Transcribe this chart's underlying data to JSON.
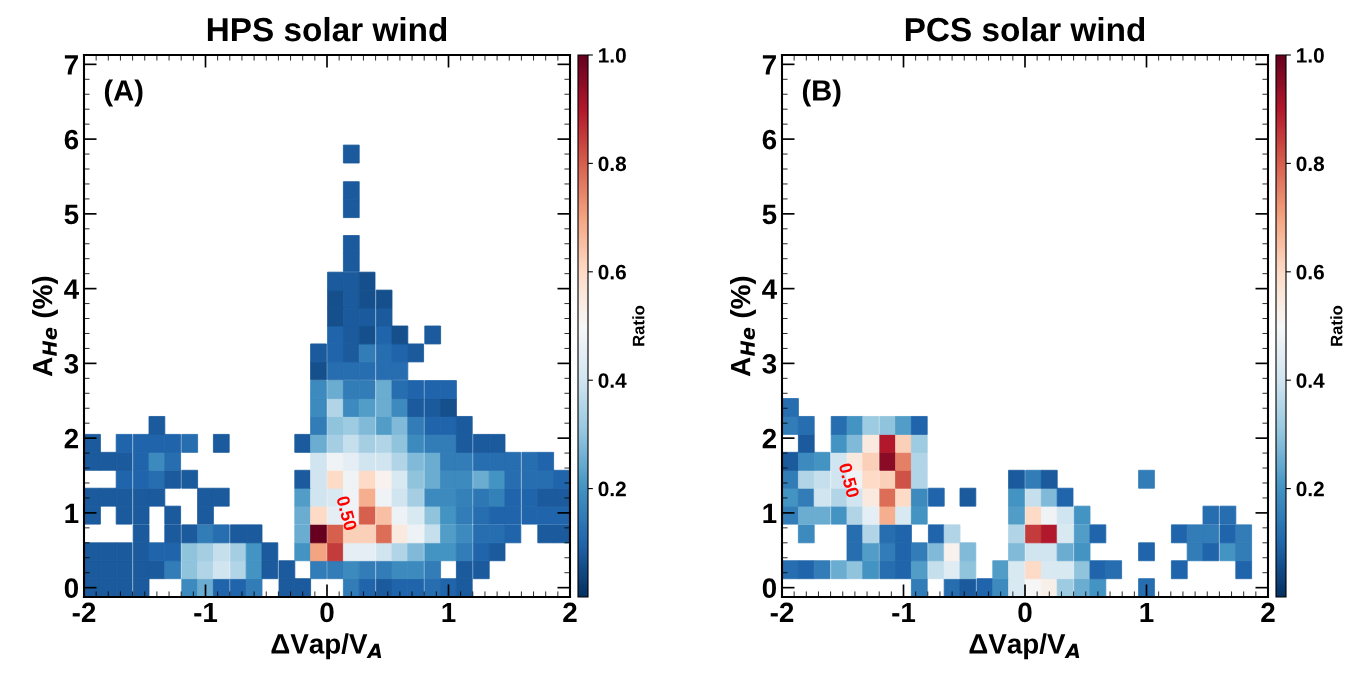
{
  "chart_data": [
    {
      "type": "scatter",
      "title": "HPS solar wind",
      "xlabel": "ΔVap/V$_{A}$",
      "ylabel": "A$_{He}$ (%)",
      "clabel": "Ratio",
      "annotations": [
        "(A)",
        {
          "text": "0.50",
          "x": 0.15,
          "y": 0.99
        }
      ],
      "xlim": [
        -2,
        2
      ],
      "xticks": [
        -2,
        -1,
        0,
        1,
        2
      ],
      "ylim": [
        -0.125,
        7.125
      ],
      "yticks": [
        0,
        1,
        2,
        3,
        4,
        5,
        6,
        7
      ],
      "marker": "square",
      "clim": [
        0,
        1
      ],
      "cticks": [
        0.2,
        0.4,
        0.6,
        0.8,
        {
          "value": 1,
          "label": "1.0"
        }
      ],
      "series": [
        {
          "x": [
            -1.93,
            -1.8,
            -1.67,
            -1.53,
            -1.13,
            -1.0,
            -0.87,
            -0.73,
            -0.6,
            -0.33,
            -0.2,
            0.2,
            0.33,
            0.47,
            0.6,
            0.73,
            0.87,
            1.0,
            1.13
          ],
          "values": [
            0.0,
            0.0,
            0.0,
            0.0,
            0.0,
            0.0,
            0.0,
            0.0,
            0.0,
            0.0,
            0.0,
            0.0,
            0.0,
            0.0,
            0.0,
            0.0,
            0.0,
            0.0,
            0.0
          ],
          "cvalues": [
            0.08,
            0.08,
            0.08,
            0.08,
            0.18,
            0.25,
            0.1,
            0.1,
            0.15,
            0.08,
            0.08,
            0.15,
            0.1,
            0.08,
            0.1,
            0.1,
            0.12,
            0.1,
            0.08
          ],
          "colors": [
            "#1b5a9c",
            "#1b5a9c",
            "#1b5a9c",
            "#1b5a9c",
            "#3c8abe",
            "#6bacd1",
            "#2065ab",
            "#2065ab",
            "#327cb7",
            "#1b5a9c",
            "#1b5a9c",
            "#327cb7",
            "#2065ab",
            "#1b5a9c",
            "#2065ab",
            "#2065ab",
            "#276eb0",
            "#2065ab",
            "#1b5a9c"
          ]
        },
        {
          "x": [
            -1.93,
            -1.8,
            -1.67,
            -1.53,
            -1.4,
            -1.27,
            -1.13,
            -1.0,
            -0.87,
            -0.73,
            -0.6,
            -0.47,
            -0.33,
            -0.07,
            0.07,
            0.2,
            0.33,
            0.47,
            0.6,
            0.73,
            0.87,
            1.13,
            1.27
          ],
          "values": [
            0.24,
            0.24,
            0.24,
            0.24,
            0.24,
            0.24,
            0.24,
            0.24,
            0.24,
            0.24,
            0.24,
            0.24,
            0.24,
            0.24,
            0.24,
            0.24,
            0.24,
            0.24,
            0.24,
            0.24,
            0.24,
            0.24,
            0.24
          ],
          "cvalues": [
            0.08,
            0.08,
            0.08,
            0.08,
            0.08,
            0.15,
            0.3,
            0.35,
            0.4,
            0.35,
            0.2,
            0.08,
            0.08,
            0.15,
            0.15,
            0.18,
            0.15,
            0.15,
            0.18,
            0.18,
            0.15,
            0.08,
            0.08
          ],
          "colors": [
            "#1b5a9c",
            "#1b5a9c",
            "#1b5a9c",
            "#1b5a9c",
            "#1b5a9c",
            "#327cb7",
            "#90c4dd",
            "#b1d5e7",
            "#d1e5f0",
            "#b1d5e7",
            "#4393c3",
            "#1b5a9c",
            "#1b5a9c",
            "#327cb7",
            "#327cb7",
            "#3c8abe",
            "#327cb7",
            "#327cb7",
            "#3c8abe",
            "#3c8abe",
            "#327cb7",
            "#1b5a9c",
            "#1b5a9c"
          ]
        },
        {
          "x": [
            -1.93,
            -1.8,
            -1.67,
            -1.53,
            -1.4,
            -1.27,
            -1.13,
            -1.0,
            -0.87,
            -0.73,
            -0.6,
            -0.47,
            -0.2,
            -0.07,
            0.07,
            0.2,
            0.33,
            0.47,
            0.6,
            0.73,
            0.87,
            1.0,
            1.13,
            1.27,
            1.4
          ],
          "values": [
            0.48,
            0.48,
            0.48,
            0.48,
            0.48,
            0.48,
            0.48,
            0.48,
            0.48,
            0.48,
            0.48,
            0.48,
            0.48,
            0.48,
            0.48,
            0.48,
            0.48,
            0.48,
            0.48,
            0.48,
            0.48,
            0.48,
            0.48,
            0.48,
            0.48
          ],
          "cvalues": [
            0.08,
            0.08,
            0.08,
            0.08,
            0.1,
            0.1,
            0.3,
            0.33,
            0.38,
            0.33,
            0.2,
            0.08,
            0.2,
            0.7,
            0.85,
            0.45,
            0.45,
            0.4,
            0.35,
            0.28,
            0.2,
            0.2,
            0.15,
            0.1,
            0.08
          ],
          "colors": [
            "#1b5a9c",
            "#1b5a9c",
            "#1b5a9c",
            "#1b5a9c",
            "#2065ab",
            "#2065ab",
            "#90c4dd",
            "#a5cee3",
            "#c5dfec",
            "#a5cee3",
            "#4393c3",
            "#1b5a9c",
            "#4393c3",
            "#f3a481",
            "#c43b3c",
            "#e4eef4",
            "#e4eef4",
            "#d1e5f0",
            "#b1d5e7",
            "#81bad8",
            "#4393c3",
            "#4393c3",
            "#327cb7",
            "#2065ab",
            "#1b5a9c"
          ]
        },
        {
          "x": [
            -1.53,
            -1.27,
            -1.13,
            -1.0,
            -0.87,
            -0.73,
            -0.6,
            -0.2,
            -0.07,
            0.07,
            0.2,
            0.33,
            0.47,
            0.6,
            0.73,
            0.87,
            1.0,
            1.13,
            1.27,
            1.4,
            1.53,
            1.8,
            1.93
          ],
          "values": [
            0.72,
            0.72,
            0.72,
            0.72,
            0.72,
            0.72,
            0.72,
            0.72,
            0.72,
            0.72,
            0.72,
            0.72,
            0.72,
            0.72,
            0.72,
            0.72,
            0.72,
            0.72,
            0.72,
            0.72,
            0.72,
            0.72,
            0.72
          ],
          "cvalues": [
            0.08,
            0.08,
            0.08,
            0.15,
            0.12,
            0.08,
            0.08,
            0.25,
            1.0,
            0.8,
            0.62,
            0.62,
            0.78,
            0.55,
            0.47,
            0.38,
            0.22,
            0.18,
            0.12,
            0.12,
            0.1,
            0.08,
            0.08
          ],
          "colors": [
            "#1b5a9c",
            "#1b5a9c",
            "#1b5a9c",
            "#327cb7",
            "#276eb0",
            "#1b5a9c",
            "#1b5a9c",
            "#6bacd1",
            "#67001f",
            "#d6604d",
            "#fbd0b9",
            "#fbd0b9",
            "#dc6e57",
            "#fae9df",
            "#ecf2f5",
            "#c5dfec",
            "#529dc8",
            "#3c8abe",
            "#276eb0",
            "#276eb0",
            "#2065ab",
            "#1b5a9c",
            "#1b5a9c"
          ]
        },
        {
          "x": [
            -1.93,
            -1.67,
            -1.53,
            -1.27,
            -1.0,
            -0.2,
            -0.07,
            0.07,
            0.2,
            0.33,
            0.47,
            0.6,
            0.73,
            0.87,
            1.0,
            1.13,
            1.27,
            1.4,
            1.53,
            1.67,
            1.8,
            1.93
          ],
          "values": [
            0.97,
            0.97,
            0.97,
            0.97,
            0.97,
            0.97,
            0.97,
            0.97,
            0.97,
            0.97,
            0.97,
            0.97,
            0.97,
            0.97,
            0.97,
            0.97,
            0.97,
            0.97,
            0.97,
            0.97,
            0.97,
            0.97
          ],
          "cvalues": [
            0.08,
            0.08,
            0.08,
            0.08,
            0.08,
            0.25,
            0.6,
            0.45,
            0.48,
            0.8,
            0.65,
            0.47,
            0.42,
            0.3,
            0.2,
            0.15,
            0.12,
            0.1,
            0.1,
            0.1,
            0.1,
            0.1
          ],
          "colors": [
            "#1b5a9c",
            "#1b5a9c",
            "#1b5a9c",
            "#1b5a9c",
            "#1b5a9c",
            "#6bacd1",
            "#fddbc7",
            "#e4eef4",
            "#eff3f5",
            "#d6604d",
            "#f8bfa4",
            "#ecf2f5",
            "#d8e9f1",
            "#90c4dd",
            "#4393c3",
            "#327cb7",
            "#276eb0",
            "#2065ab",
            "#2065ab",
            "#2065ab",
            "#2065ab",
            "#2065ab"
          ]
        },
        {
          "x": [
            -1.93,
            -1.8,
            -1.67,
            -1.53,
            -1.4,
            -1.0,
            -0.87,
            -0.2,
            -0.07,
            0.07,
            0.2,
            0.33,
            0.47,
            0.6,
            0.73,
            0.87,
            1.0,
            1.13,
            1.27,
            1.4,
            1.53,
            1.67,
            1.8,
            1.93
          ],
          "values": [
            1.21,
            1.21,
            1.21,
            1.21,
            1.21,
            1.21,
            1.21,
            1.21,
            1.21,
            1.21,
            1.21,
            1.21,
            1.21,
            1.21,
            1.21,
            1.21,
            1.21,
            1.21,
            1.21,
            1.21,
            1.21,
            1.21,
            1.21,
            1.21
          ],
          "cvalues": [
            0.08,
            0.08,
            0.08,
            0.08,
            0.08,
            0.08,
            0.08,
            0.22,
            0.4,
            0.42,
            0.48,
            0.68,
            0.48,
            0.4,
            0.33,
            0.18,
            0.18,
            0.16,
            0.14,
            0.16,
            0.1,
            0.1,
            0.08,
            0.08
          ],
          "colors": [
            "#1b5a9c",
            "#1b5a9c",
            "#1b5a9c",
            "#1b5a9c",
            "#1b5a9c",
            "#1b5a9c",
            "#1b5a9c",
            "#529dc8",
            "#d1e5f0",
            "#d8e9f1",
            "#eff3f5",
            "#f6af8e",
            "#eff3f5",
            "#d1e5f0",
            "#a5cee3",
            "#3c8abe",
            "#3c8abe",
            "#3480b9",
            "#2e77b5",
            "#3480b9",
            "#2065ab",
            "#2065ab",
            "#1b5a9c",
            "#1b5a9c"
          ]
        },
        {
          "x": [
            -1.67,
            -1.53,
            -1.4,
            -1.27,
            -1.13,
            -0.2,
            -0.07,
            0.07,
            0.2,
            0.33,
            0.47,
            0.6,
            0.73,
            0.87,
            1.0,
            1.13,
            1.27,
            1.4,
            1.53,
            1.67,
            1.8,
            1.93
          ],
          "values": [
            1.45,
            1.45,
            1.45,
            1.45,
            1.45,
            1.45,
            1.45,
            1.45,
            1.45,
            1.45,
            1.45,
            1.45,
            1.45,
            1.45,
            1.45,
            1.45,
            1.45,
            1.45,
            1.45,
            1.45,
            1.45,
            1.45
          ],
          "cvalues": [
            0.1,
            0.1,
            0.12,
            0.08,
            0.08,
            0.08,
            0.4,
            0.6,
            0.48,
            0.6,
            0.52,
            0.42,
            0.3,
            0.25,
            0.18,
            0.18,
            0.25,
            0.2,
            0.12,
            0.12,
            0.12,
            0.1
          ],
          "colors": [
            "#2065ab",
            "#2065ab",
            "#276eb0",
            "#1b5a9c",
            "#1b5a9c",
            "#1b5a9c",
            "#d1e5f0",
            "#fddbc7",
            "#eff3f5",
            "#fddbc7",
            "#f8f1ed",
            "#d8e9f1",
            "#90c4dd",
            "#6bacd1",
            "#3c8abe",
            "#3c8abe",
            "#6bacd1",
            "#4393c3",
            "#276eb0",
            "#276eb0",
            "#276eb0",
            "#2065ab"
          ]
        },
        {
          "x": [
            -1.93,
            -1.8,
            -1.67,
            -1.53,
            -1.4,
            -1.27,
            -0.07,
            0.07,
            0.2,
            0.33,
            0.47,
            0.6,
            0.73,
            0.87,
            1.0,
            1.13,
            1.27,
            1.4,
            1.53,
            1.67,
            1.8
          ],
          "values": [
            1.69,
            1.69,
            1.69,
            1.69,
            1.69,
            1.69,
            1.69,
            1.69,
            1.69,
            1.69,
            1.69,
            1.69,
            1.69,
            1.69,
            1.69,
            1.69,
            1.69,
            1.69,
            1.69,
            1.69,
            1.69
          ],
          "cvalues": [
            0.08,
            0.08,
            0.08,
            0.1,
            0.18,
            0.12,
            0.4,
            0.48,
            0.45,
            0.4,
            0.4,
            0.35,
            0.28,
            0.25,
            0.15,
            0.15,
            0.12,
            0.12,
            0.12,
            0.12,
            0.1
          ],
          "colors": [
            "#1b5a9c",
            "#1b5a9c",
            "#1b5a9c",
            "#2065ab",
            "#3c8abe",
            "#276eb0",
            "#d1e5f0",
            "#eff3f5",
            "#e4eef4",
            "#d1e5f0",
            "#d1e5f0",
            "#b1d5e7",
            "#81bad8",
            "#6bacd1",
            "#327cb7",
            "#327cb7",
            "#276eb0",
            "#276eb0",
            "#276eb0",
            "#276eb0",
            "#2065ab"
          ]
        },
        {
          "x": [
            -1.93,
            -1.67,
            -1.53,
            -1.4,
            -1.27,
            -1.13,
            -0.87,
            -0.2,
            -0.07,
            0.07,
            0.2,
            0.33,
            0.47,
            0.6,
            0.73,
            0.87,
            1.0,
            1.13,
            1.27,
            1.4
          ],
          "values": [
            1.93,
            1.93,
            1.93,
            1.93,
            1.93,
            1.93,
            1.93,
            1.93,
            1.93,
            1.93,
            1.93,
            1.93,
            1.93,
            1.93,
            1.93,
            1.93,
            1.93,
            1.93,
            1.93,
            1.93
          ],
          "cvalues": [
            0.08,
            0.1,
            0.1,
            0.1,
            0.1,
            0.12,
            0.08,
            0.08,
            0.25,
            0.33,
            0.38,
            0.33,
            0.35,
            0.3,
            0.18,
            0.15,
            0.15,
            0.08,
            0.08,
            0.08
          ],
          "colors": [
            "#1b5a9c",
            "#2065ab",
            "#2065ab",
            "#2065ab",
            "#2065ab",
            "#276eb0",
            "#1b5a9c",
            "#1b5a9c",
            "#6bacd1",
            "#a5cee3",
            "#c5dfec",
            "#a5cee3",
            "#b1d5e7",
            "#90c4dd",
            "#3c8abe",
            "#327cb7",
            "#327cb7",
            "#1b5a9c",
            "#1b5a9c",
            "#1b5a9c"
          ]
        },
        {
          "x": [
            -1.4,
            -0.07,
            0.07,
            0.2,
            0.33,
            0.47,
            0.6,
            0.73,
            0.87,
            1.0,
            1.13
          ],
          "values": [
            2.17,
            2.17,
            2.17,
            2.17,
            2.17,
            2.17,
            2.17,
            2.17,
            2.17,
            2.17,
            2.17
          ],
          "cvalues": [
            0.08,
            0.15,
            0.3,
            0.32,
            0.28,
            0.22,
            0.28,
            0.15,
            0.1,
            0.1,
            0.08
          ],
          "colors": [
            "#1b5a9c",
            "#327cb7",
            "#90c4dd",
            "#9dcbe1",
            "#81bad8",
            "#529dc8",
            "#81bad8",
            "#327cb7",
            "#2065ab",
            "#2065ab",
            "#1b5a9c"
          ]
        },
        {
          "x": [
            -0.07,
            0.07,
            0.2,
            0.33,
            0.47,
            0.6,
            0.73,
            0.87,
            1.0
          ],
          "values": [
            2.41,
            2.41,
            2.41,
            2.41,
            2.41,
            2.41,
            2.41,
            2.41,
            2.41
          ],
          "cvalues": [
            0.18,
            0.35,
            0.18,
            0.22,
            0.25,
            0.18,
            0.08,
            0.08,
            0.06
          ],
          "colors": [
            "#3c8abe",
            "#b1d5e7",
            "#3c8abe",
            "#529dc8",
            "#6bacd1",
            "#3c8abe",
            "#1b5a9c",
            "#1b5a9c",
            "#15508d"
          ]
        },
        {
          "x": [
            -0.07,
            0.07,
            0.2,
            0.33,
            0.47,
            0.6,
            0.73,
            0.87,
            1.0
          ],
          "values": [
            2.65,
            2.65,
            2.65,
            2.65,
            2.65,
            2.65,
            2.65,
            2.65,
            2.65
          ],
          "cvalues": [
            0.18,
            0.25,
            0.15,
            0.15,
            0.25,
            0.12,
            0.1,
            0.1,
            0.1
          ],
          "colors": [
            "#3c8abe",
            "#6bacd1",
            "#327cb7",
            "#327cb7",
            "#6bacd1",
            "#276eb0",
            "#2065ab",
            "#2065ab",
            "#2065ab"
          ]
        },
        {
          "x": [
            -0.07,
            0.07,
            0.2,
            0.33,
            0.47,
            0.6
          ],
          "values": [
            2.9,
            2.9,
            2.9,
            2.9,
            2.9,
            2.9
          ],
          "cvalues": [
            0.06,
            0.12,
            0.12,
            0.12,
            0.12,
            0.12
          ],
          "colors": [
            "#15508d",
            "#276eb0",
            "#276eb0",
            "#276eb0",
            "#276eb0",
            "#276eb0"
          ]
        },
        {
          "x": [
            -0.07,
            0.07,
            0.2,
            0.33,
            0.47,
            0.6,
            0.73
          ],
          "values": [
            3.14,
            3.14,
            3.14,
            3.14,
            3.14,
            3.14,
            3.14
          ],
          "cvalues": [
            0.08,
            0.1,
            0.08,
            0.15,
            0.12,
            0.1,
            0.08
          ],
          "colors": [
            "#1b5a9c",
            "#2065ab",
            "#1b5a9c",
            "#327cb7",
            "#276eb0",
            "#2065ab",
            "#1b5a9c"
          ]
        },
        {
          "x": [
            0.07,
            0.2,
            0.33,
            0.47,
            0.6,
            0.87
          ],
          "values": [
            3.38,
            3.38,
            3.38,
            3.38,
            3.38,
            3.38
          ],
          "cvalues": [
            0.1,
            0.08,
            0.06,
            0.1,
            0.06,
            0.08
          ],
          "colors": [
            "#2065ab",
            "#1b5a9c",
            "#15508d",
            "#2065ab",
            "#15508d",
            "#1b5a9c"
          ]
        },
        {
          "x": [
            0.07,
            0.2,
            0.33,
            0.47
          ],
          "values": [
            3.62,
            3.62,
            3.62,
            3.62
          ],
          "cvalues": [
            0.06,
            0.08,
            0.08,
            0.08
          ],
          "colors": [
            "#15508d",
            "#1b5a9c",
            "#1b5a9c",
            "#1b5a9c"
          ]
        },
        {
          "x": [
            0.07,
            0.2,
            0.33,
            0.47
          ],
          "values": [
            3.86,
            3.86,
            3.86,
            3.86
          ],
          "cvalues": [
            0.06,
            0.08,
            0.06,
            0.06
          ],
          "colors": [
            "#15508d",
            "#1b5a9c",
            "#15508d",
            "#15508d"
          ]
        },
        {
          "x": [
            0.07,
            0.2,
            0.33
          ],
          "values": [
            4.1,
            4.1,
            4.1
          ],
          "cvalues": [
            0.08,
            0.08,
            0.06
          ],
          "colors": [
            "#1b5a9c",
            "#1b5a9c",
            "#15508d"
          ]
        },
        {
          "x": [
            0.2,
            0.2,
            0.2,
            0.2,
            0.2
          ],
          "values": [
            4.35,
            4.59,
            5.07,
            5.31,
            5.8
          ],
          "cvalues": [
            0.08,
            0.08,
            0.08,
            0.08,
            0.08
          ],
          "colors": [
            "#1b5a9c",
            "#1b5a9c",
            "#1b5a9c",
            "#1b5a9c",
            "#1b5a9c"
          ]
        }
      ]
    },
    {
      "type": "scatter",
      "title": "PCS solar wind",
      "xlabel": "ΔVap/V$_{A}$",
      "ylabel": "A$_{He}$ (%)",
      "clabel": "Ratio",
      "annotations": [
        "(B)",
        {
          "text": "0.50",
          "x": -1.46,
          "y": 1.43
        }
      ],
      "xlim": [
        -2,
        2
      ],
      "xticks": [
        -2,
        -1,
        0,
        1,
        2
      ],
      "ylim": [
        -0.125,
        7.125
      ],
      "yticks": [
        0,
        1,
        2,
        3,
        4,
        5,
        6,
        7
      ],
      "marker": "square",
      "clim": [
        0,
        1
      ],
      "cticks": [
        0.2,
        0.4,
        0.6,
        0.8,
        {
          "value": 1,
          "label": "1.0"
        }
      ],
      "series": [
        {
          "x": [
            -0.87,
            -0.6,
            -0.47,
            -0.33,
            -0.2,
            -0.07,
            0.07,
            0.2,
            0.33,
            0.47,
            0.6,
            1.0
          ],
          "values": [
            0.0,
            0.0,
            0.0,
            0.0,
            0.0,
            0.0,
            0.0,
            0.0,
            0.0,
            0.0,
            0.0,
            0.0
          ],
          "cvalues": [
            0.15,
            0.12,
            0.08,
            0.1,
            0.18,
            0.42,
            0.5,
            0.53,
            0.32,
            0.25,
            0.2,
            0.12
          ],
          "colors": [
            "#327cb7",
            "#276eb0",
            "#1b5a9c",
            "#2065ab",
            "#3c8abe",
            "#d8e9f1",
            "#f7f6f6",
            "#f9efe9",
            "#9dcbe1",
            "#6bacd1",
            "#4393c3",
            "#276eb0"
          ]
        },
        {
          "x": [
            -1.93,
            -1.8,
            -1.67,
            -1.53,
            -1.4,
            -1.27,
            -1.13,
            -1.0,
            -0.87,
            -0.73,
            -0.6,
            -0.47,
            -0.2,
            -0.07,
            0.07,
            0.2,
            0.33,
            0.47,
            0.6,
            0.73,
            1.27,
            1.8
          ],
          "values": [
            0.24,
            0.24,
            0.24,
            0.24,
            0.24,
            0.24,
            0.24,
            0.24,
            0.24,
            0.24,
            0.24,
            0.24,
            0.24,
            0.24,
            0.24,
            0.24,
            0.24,
            0.24,
            0.24,
            0.24,
            0.24,
            0.24
          ],
          "cvalues": [
            0.12,
            0.1,
            0.15,
            0.25,
            0.3,
            0.2,
            0.12,
            0.1,
            0.22,
            0.38,
            0.44,
            0.3,
            0.22,
            0.42,
            0.6,
            0.42,
            0.42,
            0.3,
            0.1,
            0.12,
            0.1,
            0.1
          ],
          "colors": [
            "#276eb0",
            "#2065ab",
            "#327cb7",
            "#6bacd1",
            "#90c4dd",
            "#4393c3",
            "#276eb0",
            "#2065ab",
            "#529dc8",
            "#c5dfec",
            "#e0ecf3",
            "#90c4dd",
            "#529dc8",
            "#d8e9f1",
            "#fddbc7",
            "#d8e9f1",
            "#d8e9f1",
            "#90c4dd",
            "#2065ab",
            "#276eb0",
            "#2065ab",
            "#2065ab"
          ]
        },
        {
          "x": [
            -1.4,
            -1.27,
            -1.13,
            -1.0,
            -0.87,
            -0.73,
            -0.6,
            -0.47,
            -0.07,
            0.07,
            0.2,
            0.33,
            0.47,
            1.0,
            1.4,
            1.53,
            1.67,
            1.8
          ],
          "values": [
            0.48,
            0.48,
            0.48,
            0.48,
            0.48,
            0.48,
            0.48,
            0.48,
            0.48,
            0.48,
            0.48,
            0.48,
            0.48,
            0.48,
            0.48,
            0.48,
            0.48,
            0.48
          ],
          "cvalues": [
            0.12,
            0.22,
            0.15,
            0.1,
            0.15,
            0.28,
            0.52,
            0.28,
            0.28,
            0.4,
            0.4,
            0.25,
            0.2,
            0.1,
            0.15,
            0.1,
            0.2,
            0.15
          ],
          "colors": [
            "#276eb0",
            "#529dc8",
            "#327cb7",
            "#2065ab",
            "#327cb7",
            "#81bad8",
            "#f8f1ed",
            "#81bad8",
            "#81bad8",
            "#d1e5f0",
            "#d1e5f0",
            "#6bacd1",
            "#4393c3",
            "#2065ab",
            "#327cb7",
            "#2065ab",
            "#4393c3",
            "#327cb7"
          ]
        },
        {
          "x": [
            -1.8,
            -1.4,
            -1.27,
            -1.13,
            -1.0,
            -0.73,
            -0.6,
            -0.07,
            0.07,
            0.2,
            0.33,
            0.47,
            0.6,
            1.27,
            1.4,
            1.53,
            1.67,
            1.8
          ],
          "values": [
            0.72,
            0.72,
            0.72,
            0.72,
            0.72,
            0.72,
            0.72,
            0.72,
            0.72,
            0.72,
            0.72,
            0.72,
            0.72,
            0.72,
            0.72,
            0.72,
            0.72,
            0.72
          ],
          "cvalues": [
            0.18,
            0.12,
            0.35,
            0.12,
            0.1,
            0.1,
            0.35,
            0.35,
            0.85,
            0.9,
            0.42,
            0.22,
            0.1,
            0.1,
            0.15,
            0.15,
            0.1,
            0.15
          ],
          "colors": [
            "#3c8abe",
            "#276eb0",
            "#b1d5e7",
            "#276eb0",
            "#2065ab",
            "#2065ab",
            "#b1d5e7",
            "#b1d5e7",
            "#c43b3c",
            "#b1182b",
            "#d8e9f1",
            "#529dc8",
            "#2065ab",
            "#2065ab",
            "#327cb7",
            "#327cb7",
            "#2065ab",
            "#327cb7"
          ]
        },
        {
          "x": [
            -1.93,
            -1.8,
            -1.67,
            -1.53,
            -1.4,
            -1.27,
            -1.13,
            -1.0,
            -0.87,
            -0.07,
            0.07,
            0.2,
            0.33,
            0.47,
            1.53,
            1.67
          ],
          "values": [
            0.97,
            0.97,
            0.97,
            0.97,
            0.97,
            0.97,
            0.97,
            0.97,
            0.97,
            0.97,
            0.97,
            0.97,
            0.97,
            0.97,
            0.97,
            0.97
          ],
          "cvalues": [
            0.15,
            0.25,
            0.25,
            0.2,
            0.35,
            0.45,
            0.68,
            0.42,
            0.2,
            0.22,
            0.6,
            0.48,
            0.4,
            0.2,
            0.12,
            0.12
          ],
          "colors": [
            "#327cb7",
            "#6bacd1",
            "#6bacd1",
            "#4393c3",
            "#b1d5e7",
            "#e4eef4",
            "#f6af8e",
            "#d8e9f1",
            "#4393c3",
            "#529dc8",
            "#fddbc7",
            "#eff3f5",
            "#d1e5f0",
            "#4393c3",
            "#276eb0",
            "#276eb0"
          ]
        },
        {
          "x": [
            -1.93,
            -1.8,
            -1.67,
            -1.53,
            -1.4,
            -1.27,
            -1.13,
            -1.0,
            -0.87,
            -0.73,
            -0.47,
            -0.07,
            0.07,
            0.2,
            0.33
          ],
          "values": [
            1.21,
            1.21,
            1.21,
            1.21,
            1.21,
            1.21,
            1.21,
            1.21,
            1.21,
            1.21,
            1.21,
            1.21,
            1.21,
            1.21,
            1.21
          ],
          "cvalues": [
            0.2,
            0.15,
            0.4,
            0.35,
            0.4,
            0.55,
            0.78,
            0.6,
            0.18,
            0.1,
            0.08,
            0.2,
            0.38,
            0.28,
            0.1
          ],
          "colors": [
            "#4393c3",
            "#327cb7",
            "#d1e5f0",
            "#b1d5e7",
            "#d1e5f0",
            "#fae9df",
            "#dc6e57",
            "#fddbc7",
            "#3c8abe",
            "#2065ab",
            "#1b5a9c",
            "#4393c3",
            "#c5dfec",
            "#81bad8",
            "#2065ab"
          ]
        },
        {
          "x": [
            -1.93,
            -1.8,
            -1.67,
            -1.53,
            -1.4,
            -1.27,
            -1.13,
            -1.0,
            -0.87,
            -0.07,
            0.07,
            0.2,
            1.0
          ],
          "values": [
            1.45,
            1.45,
            1.45,
            1.45,
            1.45,
            1.45,
            1.45,
            1.45,
            1.45,
            1.45,
            1.45,
            1.45,
            1.45
          ],
          "cvalues": [
            0.15,
            0.35,
            0.38,
            0.4,
            0.48,
            0.6,
            0.62,
            0.82,
            0.35,
            0.08,
            0.15,
            0.08,
            0.15
          ],
          "colors": [
            "#327cb7",
            "#b1d5e7",
            "#c5dfec",
            "#d1e5f0",
            "#eff3f5",
            "#fddbc7",
            "#fbd0b9",
            "#cf5246",
            "#b1d5e7",
            "#1b5a9c",
            "#327cb7",
            "#1b5a9c",
            "#327cb7"
          ]
        },
        {
          "x": [
            -1.93,
            -1.8,
            -1.67,
            -1.53,
            -1.4,
            -1.27,
            -1.13,
            -1.0,
            -0.87
          ],
          "values": [
            1.69,
            1.69,
            1.69,
            1.69,
            1.69,
            1.69,
            1.69,
            1.69,
            1.69
          ],
          "cvalues": [
            0.08,
            0.18,
            0.2,
            0.4,
            0.55,
            0.62,
            0.95,
            0.75,
            0.35
          ],
          "colors": [
            "#1b5a9c",
            "#3c8abe",
            "#4393c3",
            "#d1e5f0",
            "#fae9df",
            "#fbd0b9",
            "#8a0b25",
            "#e48066",
            "#b1d5e7"
          ]
        },
        {
          "x": [
            -1.8,
            -1.53,
            -1.4,
            -1.27,
            -1.13,
            -1.0,
            -0.87
          ],
          "values": [
            1.93,
            1.93,
            1.93,
            1.93,
            1.93,
            1.93,
            1.93
          ],
          "cvalues": [
            0.08,
            0.2,
            0.28,
            0.55,
            0.9,
            0.62,
            0.32
          ],
          "colors": [
            "#1b5a9c",
            "#4393c3",
            "#81bad8",
            "#fae9df",
            "#b1182b",
            "#fbd0b9",
            "#9dcbe1"
          ]
        },
        {
          "x": [
            -1.93,
            -1.8,
            -1.53,
            -1.4,
            -1.27,
            -1.13,
            -1.0,
            -0.87
          ],
          "values": [
            2.17,
            2.17,
            2.17,
            2.17,
            2.17,
            2.17,
            2.17,
            2.17
          ],
          "cvalues": [
            0.15,
            0.12,
            0.12,
            0.2,
            0.32,
            0.3,
            0.22,
            0.1
          ],
          "colors": [
            "#327cb7",
            "#276eb0",
            "#276eb0",
            "#4393c3",
            "#9dcbe1",
            "#90c4dd",
            "#529dc8",
            "#2065ab"
          ]
        },
        {
          "x": [
            -1.93
          ],
          "values": [
            2.41
          ],
          "cvalues": [
            0.12
          ],
          "colors": [
            "#276eb0"
          ]
        }
      ]
    }
  ]
}
